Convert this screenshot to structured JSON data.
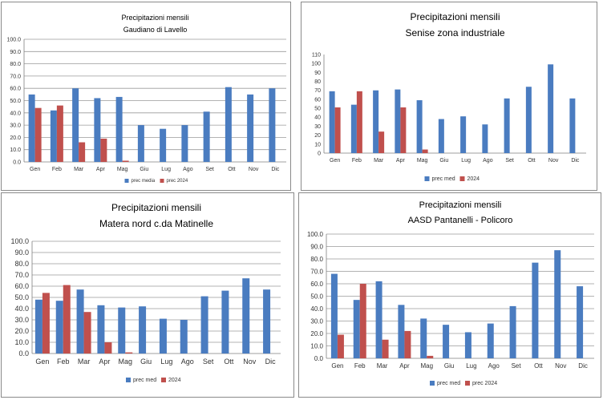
{
  "colors": {
    "series_1": "#4a7cc0",
    "series_2": "#c0504d",
    "grid": "#9a9a9a",
    "axis": "#7f7f7f"
  },
  "chart_data": [
    {
      "type": "bar",
      "title": "Precipitazioni mensili",
      "subtitle": "Gaudiano di Lavello",
      "categories": [
        "Gen",
        "Feb",
        "Mar",
        "Apr",
        "Mag",
        "Giu",
        "Lug",
        "Ago",
        "Set",
        "Ott",
        "Nov",
        "Dic"
      ],
      "yticks": [
        "0.0",
        "10.0",
        "20.0",
        "30.0",
        "40.0",
        "50.0",
        "60.0",
        "70.0",
        "80.0",
        "90.0",
        "100.0"
      ],
      "ylim": [
        0,
        100
      ],
      "grid": true,
      "legend_position": "bottom",
      "series": [
        {
          "name": "prec media",
          "values": [
            55,
            42,
            60,
            52,
            53,
            30,
            27,
            30,
            41,
            61,
            55,
            60
          ]
        },
        {
          "name": "prec 2024",
          "values": [
            44,
            46,
            16,
            19,
            1,
            null,
            null,
            null,
            null,
            null,
            null,
            null
          ]
        }
      ]
    },
    {
      "type": "bar",
      "title": "Precipitazioni mensili",
      "subtitle": "Senise zona industriale",
      "categories": [
        "Gen",
        "Feb",
        "Mar",
        "Apr",
        "Mag",
        "Giu",
        "Lug",
        "Ago",
        "Set",
        "Ott",
        "Nov",
        "Dic"
      ],
      "yticks": [
        "0",
        "10",
        "20",
        "30",
        "40",
        "50",
        "60",
        "70",
        "80",
        "90",
        "100",
        "110"
      ],
      "ylim": [
        0,
        110
      ],
      "grid": false,
      "legend_position": "bottom",
      "series": [
        {
          "name": "prec med",
          "values": [
            69,
            54,
            70,
            71,
            59,
            38,
            41,
            32,
            61,
            74,
            99,
            61
          ]
        },
        {
          "name": "2024",
          "values": [
            51,
            69,
            24,
            51,
            4,
            null,
            null,
            null,
            null,
            null,
            null,
            null
          ]
        }
      ]
    },
    {
      "type": "bar",
      "title": "Precipitazioni mensili",
      "subtitle": "Matera nord c.da Matinelle",
      "categories": [
        "Gen",
        "Feb",
        "Mar",
        "Apr",
        "Mag",
        "Giu",
        "Lug",
        "Ago",
        "Set",
        "Ott",
        "Nov",
        "Dic"
      ],
      "yticks": [
        "0.0",
        "10.0",
        "20.0",
        "30.0",
        "40.0",
        "50.0",
        "60.0",
        "70.0",
        "80.0",
        "90.0",
        "100.0"
      ],
      "ylim": [
        0,
        100
      ],
      "grid": true,
      "legend_position": "bottom",
      "series": [
        {
          "name": "prec med",
          "values": [
            48,
            47,
            57,
            43,
            41,
            42,
            31,
            30,
            51,
            56,
            67,
            57
          ]
        },
        {
          "name": "2024",
          "values": [
            54,
            61,
            37,
            10,
            1,
            null,
            null,
            null,
            null,
            null,
            null,
            null
          ]
        }
      ]
    },
    {
      "type": "bar",
      "title": "Precipitazioni mensili",
      "subtitle": "AASD Pantanelli - Policoro",
      "categories": [
        "Gen",
        "Feb",
        "Mar",
        "Apr",
        "Mag",
        "Giu",
        "Lug",
        "Ago",
        "Set",
        "Ott",
        "Nov",
        "Dic"
      ],
      "yticks": [
        "0.0",
        "10.0",
        "20.0",
        "30.0",
        "40.0",
        "50.0",
        "60.0",
        "70.0",
        "80.0",
        "90.0",
        "100.0"
      ],
      "ylim": [
        0,
        100
      ],
      "grid": true,
      "legend_position": "bottom",
      "series": [
        {
          "name": "prec med",
          "values": [
            68,
            47,
            62,
            43,
            32,
            27,
            21,
            28,
            42,
            77,
            87,
            58
          ]
        },
        {
          "name": "prec 2024",
          "values": [
            19,
            60,
            15,
            22,
            2,
            null,
            null,
            null,
            null,
            null,
            null,
            null
          ]
        }
      ]
    }
  ]
}
